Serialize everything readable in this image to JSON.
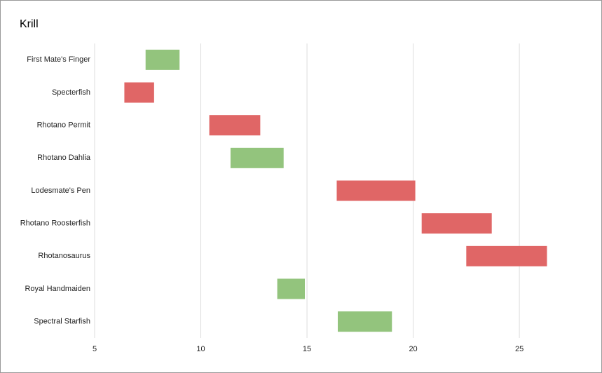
{
  "chart_data": {
    "type": "floating_bar",
    "title": "Krill",
    "categories": [
      "First Mate's Finger",
      "Specterfish",
      "Rhotano Permit",
      "Rhotano Dahlia",
      "Lodesmate's Pen",
      "Rhotano Roosterfish",
      "Rhotanosaurus",
      "Royal Handmaiden",
      "Spectral Starfish"
    ],
    "starts": [
      7.4,
      6.4,
      10.4,
      11.4,
      16.4,
      20.4,
      22.5,
      13.6,
      16.45
    ],
    "ends": [
      9.0,
      7.8,
      12.8,
      13.9,
      20.1,
      23.7,
      26.3,
      14.9,
      19.0
    ],
    "colors": [
      "#93c47d",
      "#e06666",
      "#e06666",
      "#93c47d",
      "#e06666",
      "#e06666",
      "#e06666",
      "#93c47d",
      "#93c47d"
    ],
    "xlim": [
      5,
      28
    ],
    "xticks": [
      5,
      10,
      15,
      20,
      25
    ],
    "grid": true
  }
}
